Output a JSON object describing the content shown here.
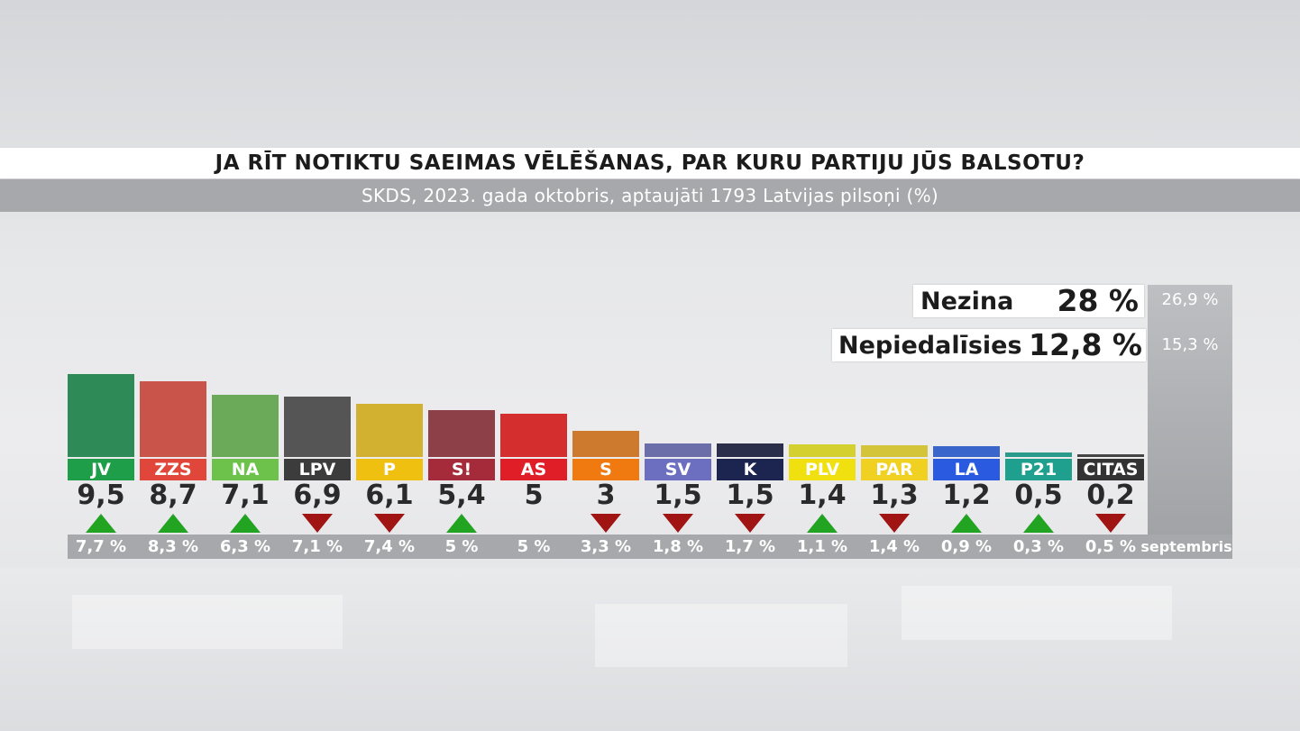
{
  "title": "JA RĪT NOTIKTU SAEIMAS VĒLĒŠANAS, PAR KURU PARTIJU JŪS BALSOTU?",
  "subtitle": "SKDS, 2023. gada oktobris, aptaujāti 1793 Latvijas pilsoņi (%)",
  "prev_period_label": "septembris",
  "side": [
    {
      "label": "Nezina",
      "value": "28 %",
      "prev": "26,9 %"
    },
    {
      "label": "Nepiedalīsies",
      "value": "12,8 %",
      "prev": "15,3 %"
    }
  ],
  "chart_data": {
    "type": "bar",
    "title": "JA RĪT NOTIKTU SAEIMAS VĒLĒŠANAS, PAR KURU PARTIJU JŪS BALSOTU?",
    "categories": [
      "JV",
      "ZZS",
      "NA",
      "LPV",
      "P",
      "S!",
      "AS",
      "S",
      "SV",
      "K",
      "PLV",
      "PAR",
      "LA",
      "P21",
      "CITAS"
    ],
    "values": [
      9.5,
      8.7,
      7.1,
      6.9,
      6.1,
      5.4,
      5,
      3,
      1.5,
      1.5,
      1.4,
      1.3,
      1.2,
      0.5,
      0.2
    ],
    "value_labels": [
      "9,5",
      "8,7",
      "7,1",
      "6,9",
      "6,1",
      "5,4",
      "5",
      "3",
      "1,5",
      "1,5",
      "1,4",
      "1,3",
      "1,2",
      "0,5",
      "0,2"
    ],
    "prev_labels": [
      "7,7 %",
      "8,3 %",
      "6,3 %",
      "7,1 %",
      "7,4 %",
      "5 %",
      "5 %",
      "3,3 %",
      "1,8 %",
      "1,7 %",
      "1,1 %",
      "1,4 %",
      "0,9 %",
      "0,3 %",
      "0,5 %"
    ],
    "prev_values": [
      7.7,
      8.3,
      6.3,
      7.1,
      7.4,
      5,
      5,
      3.3,
      1.8,
      1.7,
      1.1,
      1.4,
      0.9,
      0.3,
      0.5
    ],
    "trend": [
      "up",
      "up",
      "up",
      "down",
      "down",
      "up",
      "none",
      "down",
      "down",
      "down",
      "up",
      "down",
      "up",
      "up",
      "down"
    ],
    "bar_colors": [
      "#2e8b57",
      "#c8544a",
      "#6aaa58",
      "#555555",
      "#d2b030",
      "#8e4049",
      "#d42e2e",
      "#cd7a2e",
      "#6b6ea8",
      "#2a2e4a",
      "#d4d030",
      "#d4c43a",
      "#3a66cc",
      "#2a9a8a",
      "#444444"
    ],
    "label_colors": [
      "#1f9e4a",
      "#e0473a",
      "#6cc24a",
      "#3c3c3c",
      "#f0c010",
      "#a52a3a",
      "#e01e28",
      "#f07a10",
      "#6c6fc0",
      "#1c2450",
      "#f0e010",
      "#f0d020",
      "#2a5ae0",
      "#1fa08e",
      "#333333"
    ]
  }
}
